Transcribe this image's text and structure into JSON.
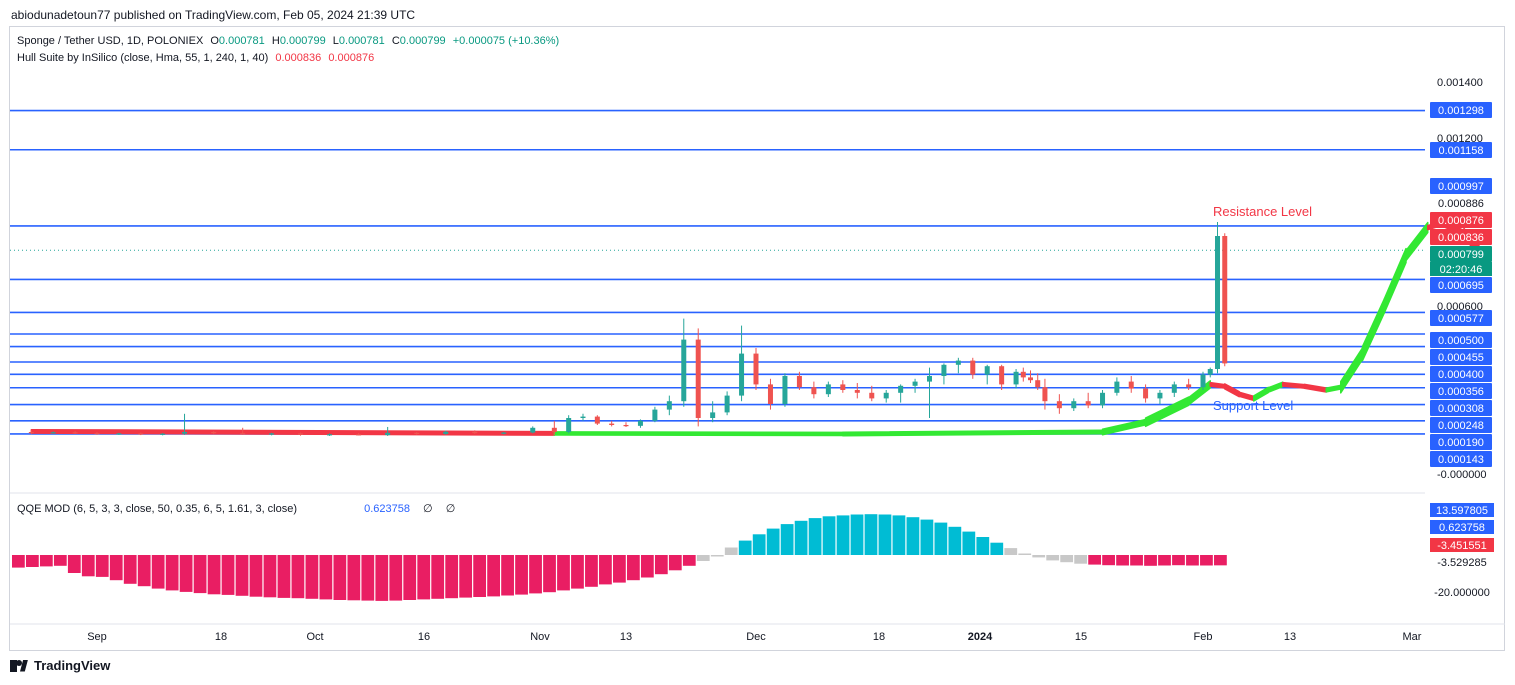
{
  "header": {
    "publisher": "abiodunadetoun77 published on TradingView.com, Feb 05, 2024 21:39 UTC"
  },
  "legend": {
    "symbol": "Sponge / Tether USD, 1D, POLONIEX",
    "o_label": "O",
    "o_value": "0.000781",
    "h_label": "H",
    "h_value": "0.000799",
    "l_label": "L",
    "l_value": "0.000781",
    "c_label": "C",
    "c_value": "0.000799",
    "change": "+0.000075 (+10.36%)",
    "indicator": "Hull Suite by InSilico (close, Hma, 55, 1, 240, 1, 40)",
    "ind_v1": "0.000836",
    "ind_v2": "0.000876",
    "qqe": "QQE MOD (6, 5, 3, 3, close, 50, 0.35, 6, 5, 1.61, 3, close)",
    "qqe_value": "0.623758",
    "empty_1": "∅",
    "empty_2": "∅"
  },
  "footer": {
    "brand": "TradingView"
  },
  "colors": {
    "up": "#26a69a",
    "down": "#ef5350",
    "level": "#2962ff",
    "hull_up": "#33e833",
    "hull_down": "#f23645",
    "qqe_up": "#00bcd4",
    "qqe_down": "#e91e63",
    "qqe_neutral": "#c8c8c8"
  },
  "chart_data": {
    "type": "candlestick",
    "x_tick_labels": [
      "Sep",
      "18",
      "Oct",
      "16",
      "Nov",
      "13",
      "Dec",
      "18",
      "2024",
      "15",
      "Feb",
      "13",
      "Mar"
    ],
    "x_tick_dates": [
      "2023-09-01",
      "2023-09-18",
      "2023-10-01",
      "2023-10-16",
      "2023-11-01",
      "2023-11-13",
      "2023-12-01",
      "2023-12-18",
      "2024-01-01",
      "2024-01-15",
      "2024-02-01",
      "2024-02-13",
      "2024-03-01"
    ],
    "y_tick_labels": [
      "0.001400",
      "0.001200",
      "0.000600",
      "-0.000000"
    ],
    "y_ticks": [
      0.0014,
      0.0012,
      0.0006,
      0.0
    ],
    "ylim": [
      -0.0001,
      0.0015
    ],
    "levels": [
      0.001298,
      0.001158,
      0.000886,
      0.000695,
      0.000577,
      0.0005,
      0.000455,
      0.0004,
      0.000356,
      0.000308,
      0.000248,
      0.00019,
      0.000143
    ],
    "level_labels": [
      "0.001298",
      "0.001158",
      "0.000997",
      "0.000886",
      "0.000876",
      "0.000836",
      "0.000799",
      "0.000695",
      "0.000577",
      "0.000500",
      "0.000455",
      "0.000400",
      "0.000356",
      "0.000308",
      "0.000248",
      "0.000190",
      "0.000143"
    ],
    "last_price": 0.000799,
    "last_price_label": "0.000799",
    "countdown": "02:20:46",
    "annotations": {
      "resistance": "Resistance Level",
      "support": "Support Level"
    },
    "candles": [
      [
        "2023-08-23",
        0.00015,
        0.000155,
        0.000142,
        0.000148
      ],
      [
        "2023-08-26",
        0.000148,
        0.000152,
        0.000145,
        0.000149
      ],
      [
        "2023-08-29",
        0.000149,
        0.000153,
        0.000143,
        0.000146
      ],
      [
        "2023-09-01",
        0.000146,
        0.00015,
        0.00014,
        0.000143
      ],
      [
        "2023-09-04",
        0.000143,
        0.000147,
        0.00014,
        0.000145
      ],
      [
        "2023-09-07",
        0.000145,
        0.000148,
        0.000139,
        0.000141
      ],
      [
        "2023-09-10",
        0.000141,
        0.000146,
        0.000138,
        0.000144
      ],
      [
        "2023-09-13",
        0.000144,
        0.000215,
        0.00014,
        0.00015
      ],
      [
        "2023-09-17",
        0.00015,
        0.000153,
        0.000142,
        0.000146
      ],
      [
        "2023-09-21",
        0.000146,
        0.000165,
        0.00014,
        0.000143
      ],
      [
        "2023-09-25",
        0.000143,
        0.000147,
        0.000138,
        0.000145
      ],
      [
        "2023-09-29",
        0.000145,
        0.000148,
        0.000137,
        0.00014
      ],
      [
        "2023-10-03",
        0.00014,
        0.000145,
        0.000136,
        0.000142
      ],
      [
        "2023-10-07",
        0.000142,
        0.000146,
        0.000138,
        0.000139
      ],
      [
        "2023-10-11",
        0.000139,
        0.000168,
        0.000136,
        0.000147
      ],
      [
        "2023-10-15",
        0.000147,
        0.00015,
        0.00014,
        0.000143
      ],
      [
        "2023-10-19",
        0.000143,
        0.000155,
        0.00014,
        0.000151
      ],
      [
        "2023-10-23",
        0.000151,
        0.000156,
        0.000143,
        0.000146
      ],
      [
        "2023-10-27",
        0.000146,
        0.00015,
        0.000142,
        0.000148
      ],
      [
        "2023-10-31",
        0.000148,
        0.00017,
        0.000145,
        0.000165
      ],
      [
        "2023-11-03",
        0.000165,
        0.00019,
        0.00014,
        0.00015
      ],
      [
        "2023-11-05",
        0.00015,
        0.00021,
        0.000145,
        0.0002
      ],
      [
        "2023-11-07",
        0.0002,
        0.000215,
        0.00019,
        0.000205
      ],
      [
        "2023-11-09",
        0.000205,
        0.00021,
        0.000175,
        0.00018
      ],
      [
        "2023-11-11",
        0.00018,
        0.00019,
        0.00017,
        0.000175
      ],
      [
        "2023-11-13",
        0.000175,
        0.000185,
        0.000168,
        0.000172
      ],
      [
        "2023-11-15",
        0.000172,
        0.000195,
        0.000165,
        0.00019
      ],
      [
        "2023-11-17",
        0.00019,
        0.00024,
        0.000185,
        0.00023
      ],
      [
        "2023-11-19",
        0.00023,
        0.00028,
        0.00021,
        0.00026
      ],
      [
        "2023-11-21",
        0.00026,
        0.000555,
        0.00024,
        0.00048
      ],
      [
        "2023-11-23",
        0.00048,
        0.00052,
        0.00017,
        0.0002
      ],
      [
        "2023-11-25",
        0.0002,
        0.00026,
        0.000185,
        0.00022
      ],
      [
        "2023-11-27",
        0.00022,
        0.000295,
        0.00021,
        0.00028
      ],
      [
        "2023-11-29",
        0.00028,
        0.00053,
        0.00026,
        0.00043
      ],
      [
        "2023-12-01",
        0.00043,
        0.00045,
        0.0003,
        0.00032
      ],
      [
        "2023-12-03",
        0.00032,
        0.00034,
        0.00023,
        0.00025
      ],
      [
        "2023-12-05",
        0.00025,
        0.00036,
        0.00024,
        0.00035
      ],
      [
        "2023-12-07",
        0.00035,
        0.000365,
        0.0003,
        0.00031
      ],
      [
        "2023-12-09",
        0.00031,
        0.00033,
        0.00027,
        0.000285
      ],
      [
        "2023-12-11",
        0.000285,
        0.00033,
        0.000275,
        0.00032
      ],
      [
        "2023-12-13",
        0.00032,
        0.000335,
        0.00029,
        0.0003
      ],
      [
        "2023-12-15",
        0.0003,
        0.000325,
        0.00027,
        0.00029
      ],
      [
        "2023-12-17",
        0.00029,
        0.000315,
        0.00026,
        0.00027
      ],
      [
        "2023-12-19",
        0.00027,
        0.0003,
        0.000255,
        0.00029
      ],
      [
        "2023-12-21",
        0.00029,
        0.00032,
        0.000255,
        0.000315
      ],
      [
        "2023-12-23",
        0.000315,
        0.00034,
        0.00029,
        0.00033
      ],
      [
        "2023-12-25",
        0.00033,
        0.00038,
        0.0002,
        0.00035
      ],
      [
        "2023-12-27",
        0.00035,
        0.000395,
        0.00032,
        0.00039
      ],
      [
        "2023-12-29",
        0.00039,
        0.000415,
        0.00036,
        0.000405
      ],
      [
        "2023-12-31",
        0.000405,
        0.000415,
        0.00034,
        0.000355
      ],
      [
        "2024-01-02",
        0.000355,
        0.00039,
        0.00032,
        0.000385
      ],
      [
        "2024-01-04",
        0.000385,
        0.00039,
        0.0003,
        0.00032
      ],
      [
        "2024-01-06",
        0.00032,
        0.000375,
        0.000305,
        0.000365
      ],
      [
        "2024-01-07",
        0.000365,
        0.00038,
        0.00033,
        0.000345
      ],
      [
        "2024-01-08",
        0.000345,
        0.00037,
        0.000325,
        0.000335
      ],
      [
        "2024-01-09",
        0.000335,
        0.00036,
        0.0003,
        0.00031
      ],
      [
        "2024-01-10",
        0.00031,
        0.00034,
        0.00023,
        0.00026
      ],
      [
        "2024-01-12",
        0.00026,
        0.000285,
        0.000215,
        0.000235
      ],
      [
        "2024-01-14",
        0.000235,
        0.00027,
        0.000225,
        0.00026
      ],
      [
        "2024-01-16",
        0.00026,
        0.00029,
        0.000235,
        0.000245
      ],
      [
        "2024-01-18",
        0.000245,
        0.0003,
        0.000235,
        0.00029
      ],
      [
        "2024-01-20",
        0.00029,
        0.000345,
        0.00028,
        0.00033
      ],
      [
        "2024-01-22",
        0.00033,
        0.00035,
        0.00029,
        0.000305
      ],
      [
        "2024-01-24",
        0.000305,
        0.00032,
        0.000255,
        0.00027
      ],
      [
        "2024-01-26",
        0.00027,
        0.0003,
        0.00025,
        0.00029
      ],
      [
        "2024-01-28",
        0.00029,
        0.00033,
        0.000275,
        0.00032
      ],
      [
        "2024-01-30",
        0.00032,
        0.00034,
        0.0003,
        0.00031
      ],
      [
        "2024-02-01",
        0.00031,
        0.000365,
        0.0003,
        0.000355
      ],
      [
        "2024-02-02",
        0.000355,
        0.00038,
        0.000345,
        0.000375
      ],
      [
        "2024-02-03",
        0.000375,
        0.0009,
        0.00036,
        0.00085
      ],
      [
        "2024-02-04",
        0.00085,
        0.00086,
        0.000385,
        0.000395
      ]
    ],
    "hull": [
      [
        0,
        0.000152,
        "down"
      ],
      [
        20,
        0.000145,
        "down"
      ],
      [
        40,
        0.000143,
        "up"
      ],
      [
        60,
        0.00015,
        "up"
      ],
      [
        63,
        0.000185,
        "up"
      ],
      [
        66,
        0.00026,
        "up"
      ],
      [
        68,
        0.00032,
        "up"
      ],
      [
        70,
        0.000313,
        "down"
      ],
      [
        72,
        0.000285,
        "down"
      ],
      [
        74,
        0.00027,
        "down"
      ],
      [
        76,
        0.0003,
        "up"
      ],
      [
        78,
        0.00032,
        "up"
      ],
      [
        81,
        0.000313,
        "down"
      ],
      [
        84,
        0.0003,
        "down"
      ],
      [
        86,
        0.00031,
        "up"
      ],
      [
        89,
        0.00043,
        "up"
      ],
      [
        92,
        0.0006,
        "up"
      ],
      [
        95,
        0.00078,
        "up"
      ],
      [
        98,
        0.00088,
        "up"
      ],
      [
        100,
        0.000895,
        "down"
      ],
      [
        103,
        0.00086,
        "down"
      ],
      [
        106,
        0.00077,
        "down"
      ]
    ],
    "qqe_values": [
      -4.2,
      -4.0,
      -3.8,
      -3.6,
      -6.0,
      -7.1,
      -7.3,
      -8.4,
      -9.6,
      -10.4,
      -11.2,
      -11.8,
      -12.3,
      -12.7,
      -13.1,
      -13.3,
      -13.6,
      -13.9,
      -14.1,
      -14.3,
      -14.4,
      -14.6,
      -14.8,
      -15.0,
      -15.1,
      -15.2,
      -15.3,
      -15.2,
      -15.0,
      -14.8,
      -14.6,
      -14.4,
      -14.2,
      -14.0,
      -13.8,
      -13.5,
      -13.2,
      -12.8,
      -12.4,
      -11.8,
      -11.2,
      -10.6,
      -9.8,
      -9.2,
      -8.4,
      -7.5,
      -6.4,
      -5.1,
      -3.6,
      -2.0,
      0.0,
      2.5,
      4.8,
      6.9,
      8.8,
      10.3,
      11.4,
      12.3,
      12.9,
      13.2,
      13.5,
      13.6,
      13.5,
      13.2,
      12.6,
      11.8,
      10.8,
      9.4,
      7.8,
      6.0,
      4.1,
      2.3,
      0.5,
      -0.8,
      -1.8,
      -2.4,
      -2.9,
      -3.2,
      -3.4,
      -3.5,
      -3.5,
      -3.6,
      -3.5,
      -3.4,
      -3.5,
      -3.5,
      -3.45
    ],
    "qqe_y_labels": [
      "13.597805",
      "0.623758",
      "-3.451551",
      "-3.529285",
      "-20.000000"
    ],
    "qqe_y_ticks": [
      13.597805,
      0.623758,
      -3.451551,
      -3.529285,
      -20.0
    ],
    "qqe_ylim": [
      -28,
      18
    ]
  }
}
